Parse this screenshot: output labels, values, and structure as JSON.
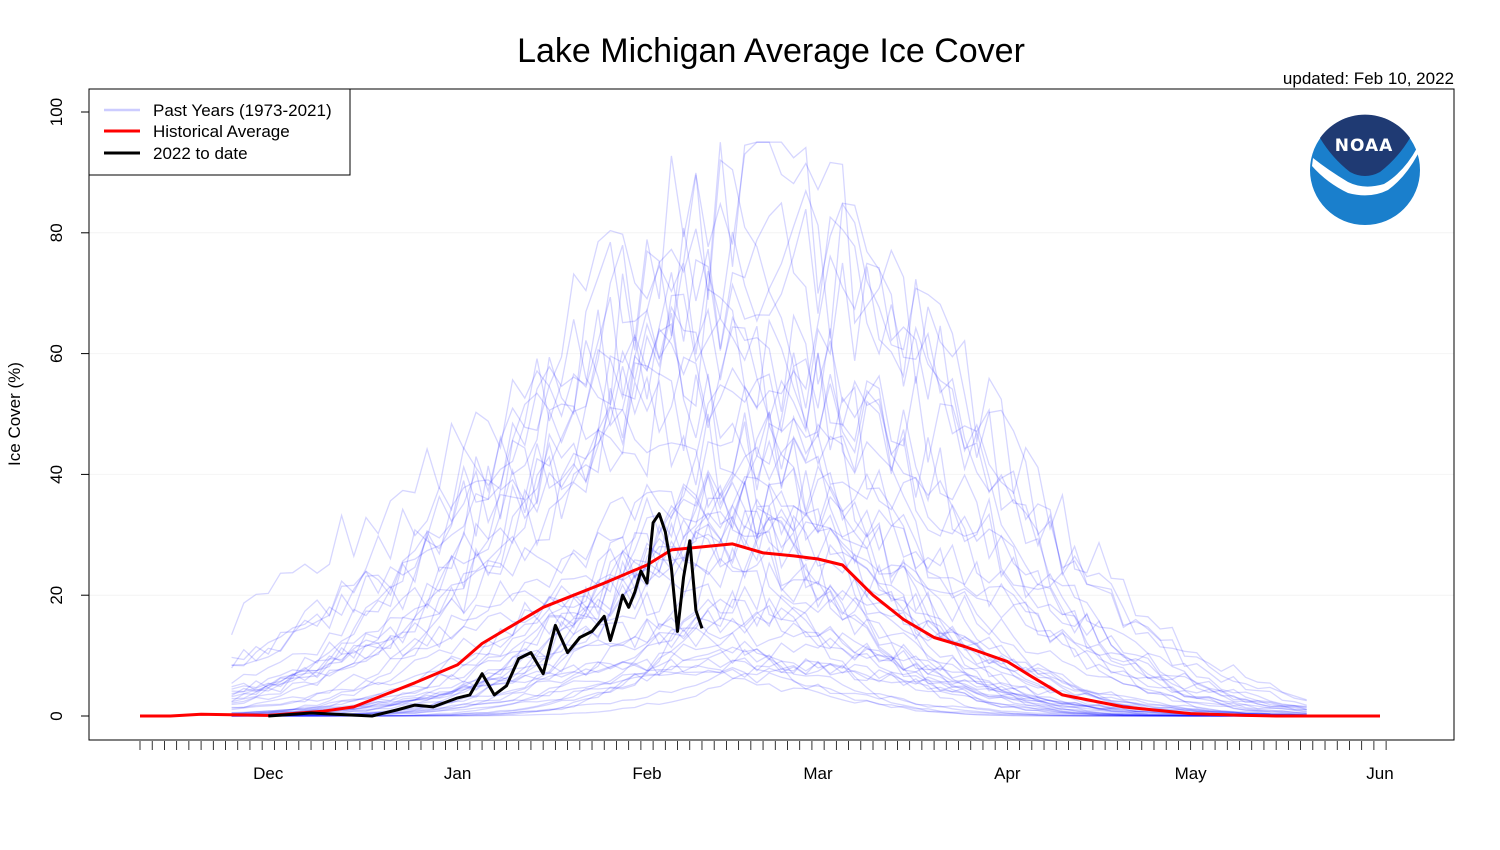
{
  "chart_data": {
    "type": "line",
    "title": "Lake Michigan Average Ice Cover",
    "subtitle": "updated: Feb 10, 2022",
    "xlabel": "",
    "ylabel": "Ice Cover (%)",
    "ylim": [
      0,
      100
    ],
    "y_ticks": [
      0,
      20,
      40,
      60,
      80,
      100
    ],
    "x_ticks": [
      "Dec",
      "Jan",
      "Feb",
      "Mar",
      "Apr",
      "May",
      "Jun"
    ],
    "grid": "horizontal, faint",
    "legend_position": "top-left",
    "legend": [
      "Past Years (1973-2021)",
      "Historical Average",
      "2022 to date"
    ],
    "logo": "NOAA",
    "colors": {
      "past_years": "#0000ff",
      "historical_average": "#ff0000",
      "current_year": "#000000"
    },
    "series": [
      {
        "name": "Historical Average",
        "x": [
          "Nov 10",
          "Nov 15",
          "Nov 20",
          "Dec 1",
          "Dec 10",
          "Dec 15",
          "Dec 20",
          "Dec 25",
          "Jan 1",
          "Jan 5",
          "Jan 10",
          "Jan 15",
          "Jan 20",
          "Jan 25",
          "Feb 1",
          "Feb 5",
          "Feb 10",
          "Feb 15",
          "Feb 20",
          "Feb 25",
          "Mar 1",
          "Mar 5",
          "Mar 10",
          "Mar 15",
          "Mar 20",
          "Mar 25",
          "Apr 1",
          "Apr 5",
          "Apr 10",
          "Apr 15",
          "Apr 20",
          "Apr 25",
          "May 1",
          "May 10",
          "May 15",
          "Jun 1"
        ],
        "values": [
          0,
          0,
          0.3,
          0.1,
          0.8,
          1.5,
          3.5,
          5.5,
          8.5,
          12,
          15,
          18,
          20,
          22,
          25,
          27.5,
          28,
          28.5,
          27,
          26.5,
          26,
          25,
          20,
          16,
          13,
          11.5,
          9,
          6.5,
          3.5,
          2.5,
          1.5,
          1,
          0.4,
          0.1,
          0,
          0
        ]
      },
      {
        "name": "2022 to date",
        "x": [
          "Dec 1",
          "Dec 8",
          "Dec 12",
          "Dec 18",
          "Dec 22",
          "Dec 25",
          "Dec 28",
          "Jan 1",
          "Jan 3",
          "Jan 5",
          "Jan 7",
          "Jan 9",
          "Jan 11",
          "Jan 13",
          "Jan 15",
          "Jan 17",
          "Jan 19",
          "Jan 21",
          "Jan 23",
          "Jan 25",
          "Jan 26",
          "Jan 27",
          "Jan 28",
          "Jan 29",
          "Jan 30",
          "Jan 31",
          "Feb 1",
          "Feb 2",
          "Feb 3",
          "Feb 4",
          "Feb 5",
          "Feb 6",
          "Feb 7",
          "Feb 8",
          "Feb 9",
          "Feb 10"
        ],
        "values": [
          0,
          0.5,
          0.3,
          0,
          1,
          1.8,
          1.5,
          3,
          3.5,
          7,
          3.5,
          5,
          9.5,
          10.5,
          7,
          15,
          10.5,
          13,
          14,
          16.5,
          12.5,
          16,
          20,
          18,
          20.5,
          24,
          22,
          32,
          33.5,
          30.5,
          24.5,
          14,
          23,
          29,
          17.5,
          14.5
        ]
      }
    ]
  }
}
